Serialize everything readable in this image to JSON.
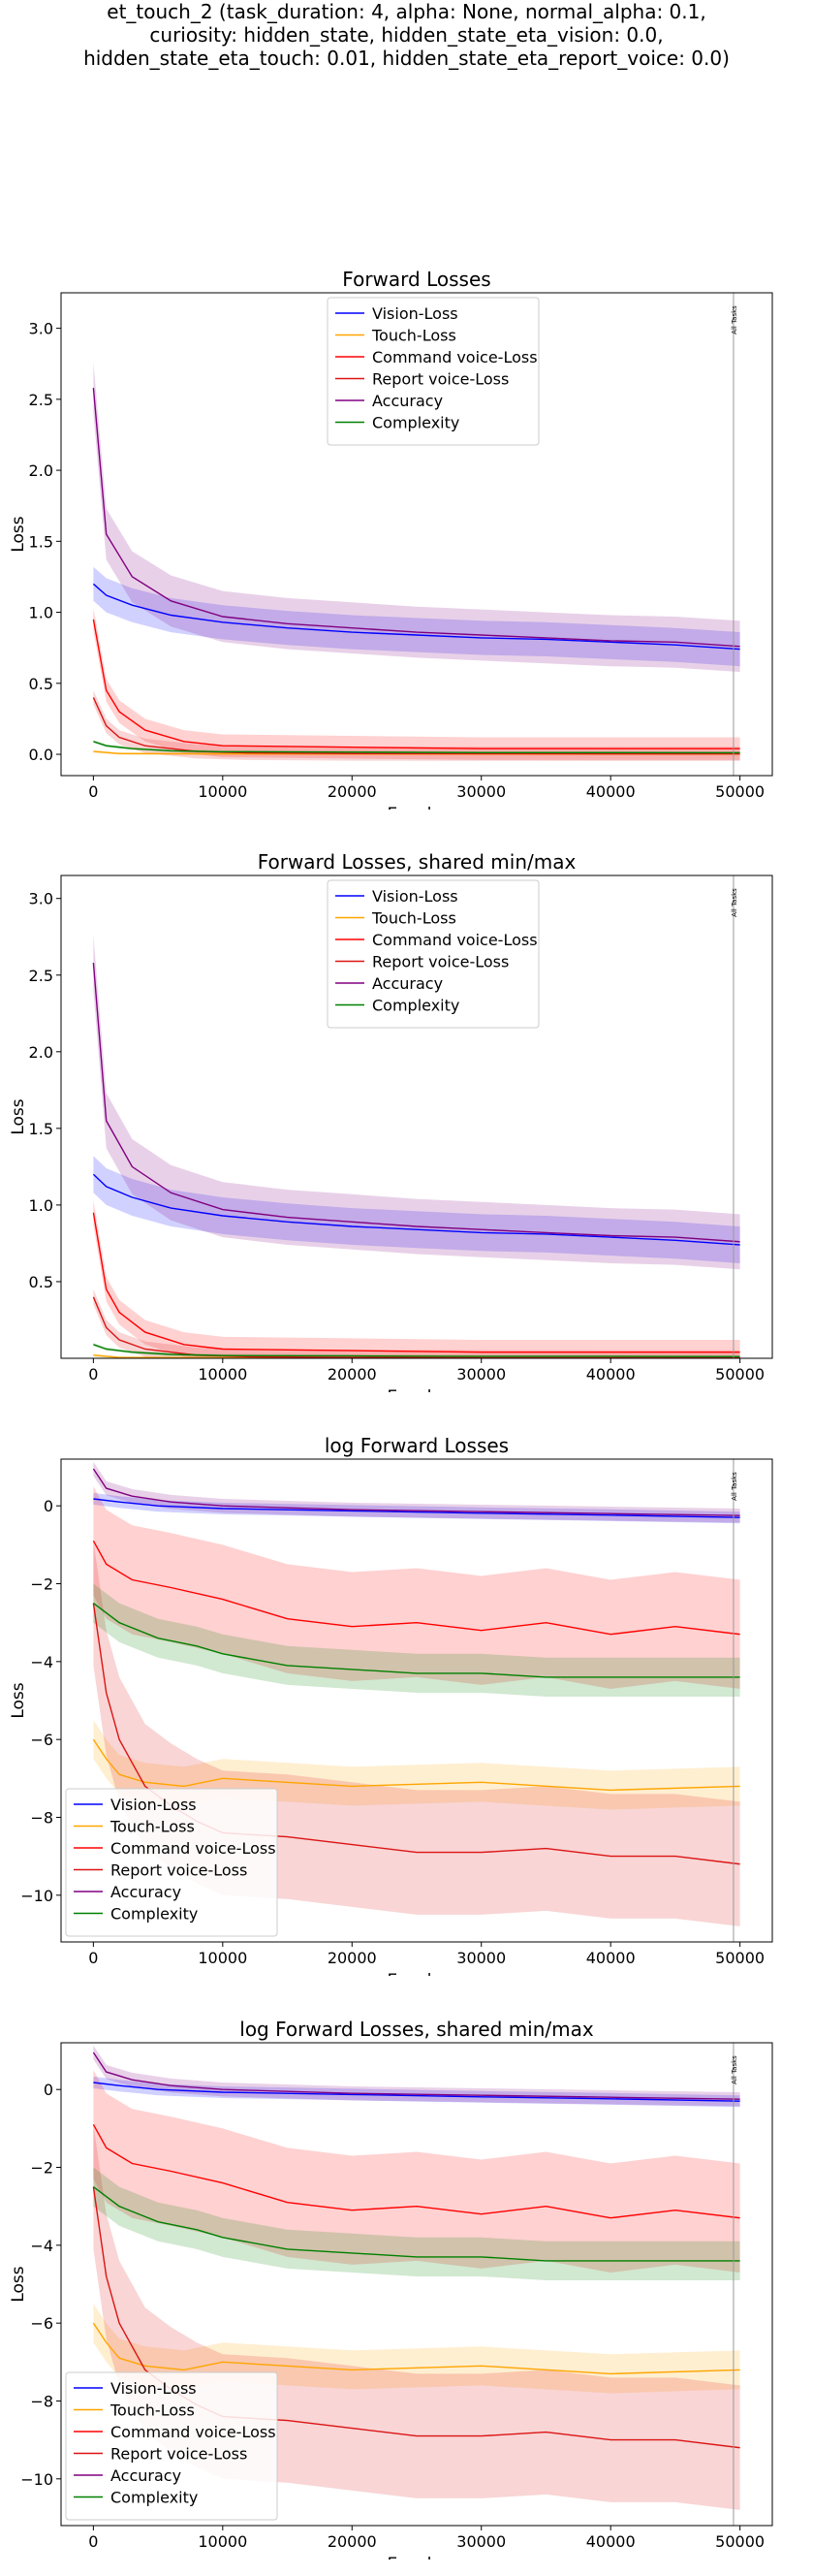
{
  "suptitle": [
    "et_touch_2 (task_duration: 4, alpha: None, normal_alpha: 0.1,",
    "curiosity: hidden_state, hidden_state_eta_vision: 0.0,",
    "hidden_state_eta_touch: 0.01, hidden_state_eta_report_voice: 0.0)"
  ],
  "colors": {
    "vision": "#0000ff",
    "touch": "#ffa500",
    "command": "#ff0000",
    "report": "#dc1414",
    "accuracy": "#800080",
    "complexity": "#008000"
  },
  "chart_data": [
    {
      "type": "line",
      "title": "Forward Losses",
      "xlabel": "Epochs",
      "ylabel": "Loss",
      "xlim": [
        -2500,
        52500
      ],
      "ylim": [
        -0.15,
        3.25
      ],
      "xticks": [
        0,
        10000,
        20000,
        30000,
        40000,
        50000
      ],
      "yticks": [
        0.0,
        0.5,
        1.0,
        1.5,
        2.0,
        2.5,
        3.0
      ],
      "ytick_labels": [
        "0.0",
        "0.5",
        "1.0",
        "1.5",
        "2.0",
        "2.5",
        "3.0"
      ],
      "legend": "upper-center",
      "vline": {
        "x": 49500,
        "label": "All Tasks"
      },
      "series": [
        {
          "name": "Vision-Loss",
          "key": "vision",
          "x": [
            0,
            1000,
            3000,
            6000,
            10000,
            15000,
            20000,
            25000,
            30000,
            35000,
            40000,
            45000,
            50000
          ],
          "y": [
            1.2,
            1.12,
            1.05,
            0.98,
            0.93,
            0.89,
            0.86,
            0.84,
            0.82,
            0.81,
            0.79,
            0.77,
            0.74
          ],
          "band": 0.12
        },
        {
          "name": "Touch-Loss",
          "key": "touch",
          "x": [
            0,
            2000,
            10000,
            30000,
            50000
          ],
          "y": [
            0.02,
            0.005,
            0.003,
            0.002,
            0.002
          ],
          "band": 0.01
        },
        {
          "name": "Command voice-Loss",
          "key": "command",
          "x": [
            0,
            1000,
            2000,
            4000,
            7000,
            10000,
            20000,
            30000,
            40000,
            50000
          ],
          "y": [
            0.95,
            0.45,
            0.3,
            0.17,
            0.09,
            0.06,
            0.05,
            0.04,
            0.04,
            0.04
          ],
          "band": 0.08
        },
        {
          "name": "Report voice-Loss",
          "key": "report",
          "x": [
            0,
            1000,
            2000,
            4000,
            8000,
            12000,
            20000,
            30000,
            40000,
            50000
          ],
          "y": [
            0.4,
            0.2,
            0.12,
            0.06,
            0.02,
            0.01,
            0.005,
            0.004,
            0.003,
            0.003
          ],
          "band": 0.05
        },
        {
          "name": "Accuracy",
          "key": "accuracy",
          "x": [
            0,
            1000,
            3000,
            6000,
            10000,
            15000,
            20000,
            25000,
            30000,
            35000,
            40000,
            45000,
            50000
          ],
          "y": [
            2.58,
            1.55,
            1.25,
            1.08,
            0.97,
            0.92,
            0.89,
            0.86,
            0.84,
            0.82,
            0.8,
            0.79,
            0.76
          ],
          "band": 0.18
        },
        {
          "name": "Complexity",
          "key": "complexity",
          "x": [
            0,
            1000,
            3000,
            6000,
            10000,
            20000,
            30000,
            40000,
            50000
          ],
          "y": [
            0.09,
            0.06,
            0.04,
            0.025,
            0.018,
            0.015,
            0.012,
            0.012,
            0.011
          ],
          "band": 0.01
        }
      ]
    },
    {
      "type": "line",
      "title": "Forward Losses, shared min/max",
      "xlabel": "Epochs",
      "ylabel": "Loss",
      "xlim": [
        -2500,
        52500
      ],
      "ylim": [
        0.0,
        3.15
      ],
      "xticks": [
        0,
        10000,
        20000,
        30000,
        40000,
        50000
      ],
      "yticks": [
        0.5,
        1.0,
        1.5,
        2.0,
        2.5,
        3.0
      ],
      "ytick_labels": [
        "0.5",
        "1.0",
        "1.5",
        "2.0",
        "2.5",
        "3.0"
      ],
      "legend": "upper-center",
      "vline": {
        "x": 49500,
        "label": "All Tasks"
      },
      "series": [
        {
          "name": "Vision-Loss",
          "key": "vision",
          "x": [
            0,
            1000,
            3000,
            6000,
            10000,
            15000,
            20000,
            25000,
            30000,
            35000,
            40000,
            45000,
            50000
          ],
          "y": [
            1.2,
            1.12,
            1.05,
            0.98,
            0.93,
            0.89,
            0.86,
            0.84,
            0.82,
            0.81,
            0.79,
            0.77,
            0.74
          ],
          "band": 0.12
        },
        {
          "name": "Touch-Loss",
          "key": "touch",
          "x": [
            0,
            2000,
            10000,
            30000,
            50000
          ],
          "y": [
            0.02,
            0.005,
            0.003,
            0.002,
            0.002
          ],
          "band": 0.01
        },
        {
          "name": "Command voice-Loss",
          "key": "command",
          "x": [
            0,
            1000,
            2000,
            4000,
            7000,
            10000,
            20000,
            30000,
            40000,
            50000
          ],
          "y": [
            0.95,
            0.45,
            0.3,
            0.17,
            0.09,
            0.06,
            0.05,
            0.04,
            0.04,
            0.04
          ],
          "band": 0.08
        },
        {
          "name": "Report voice-Loss",
          "key": "report",
          "x": [
            0,
            1000,
            2000,
            4000,
            8000,
            12000,
            20000,
            30000,
            40000,
            50000
          ],
          "y": [
            0.4,
            0.2,
            0.12,
            0.06,
            0.02,
            0.01,
            0.005,
            0.004,
            0.003,
            0.003
          ],
          "band": 0.05
        },
        {
          "name": "Accuracy",
          "key": "accuracy",
          "x": [
            0,
            1000,
            3000,
            6000,
            10000,
            15000,
            20000,
            25000,
            30000,
            35000,
            40000,
            45000,
            50000
          ],
          "y": [
            2.58,
            1.55,
            1.25,
            1.08,
            0.97,
            0.92,
            0.89,
            0.86,
            0.84,
            0.82,
            0.8,
            0.79,
            0.76
          ],
          "band": 0.18
        },
        {
          "name": "Complexity",
          "key": "complexity",
          "x": [
            0,
            1000,
            3000,
            6000,
            10000,
            20000,
            30000,
            40000,
            50000
          ],
          "y": [
            0.09,
            0.06,
            0.04,
            0.025,
            0.018,
            0.015,
            0.012,
            0.012,
            0.011
          ],
          "band": 0.01
        }
      ]
    },
    {
      "type": "line",
      "title": "log Forward Losses",
      "xlabel": "Epochs",
      "ylabel": "Loss",
      "xlim": [
        -2500,
        52500
      ],
      "ylim": [
        -11.2,
        1.2
      ],
      "xticks": [
        0,
        10000,
        20000,
        30000,
        40000,
        50000
      ],
      "yticks": [
        0,
        -2,
        -4,
        -6,
        -8,
        -10
      ],
      "ytick_labels": [
        "0",
        "−2",
        "−4",
        "−6",
        "−8",
        "−10"
      ],
      "legend": "lower-left",
      "vline": {
        "x": 49500,
        "label": "All Tasks"
      },
      "series": [
        {
          "name": "Vision-Loss",
          "key": "vision",
          "x": [
            0,
            2000,
            5000,
            10000,
            20000,
            30000,
            40000,
            50000
          ],
          "y": [
            0.18,
            0.1,
            0.0,
            -0.07,
            -0.13,
            -0.19,
            -0.24,
            -0.3
          ],
          "band": 0.15
        },
        {
          "name": "Touch-Loss",
          "key": "touch",
          "x": [
            0,
            1000,
            2000,
            4000,
            7000,
            10000,
            20000,
            30000,
            40000,
            50000
          ],
          "y": [
            -6.0,
            -6.5,
            -6.9,
            -7.1,
            -7.2,
            -7.0,
            -7.2,
            -7.1,
            -7.3,
            -7.2
          ],
          "band": 0.5
        },
        {
          "name": "Command voice-Loss",
          "key": "command",
          "x": [
            0,
            1000,
            3000,
            6000,
            10000,
            15000,
            20000,
            25000,
            30000,
            35000,
            40000,
            45000,
            50000
          ],
          "y": [
            -0.9,
            -1.5,
            -1.9,
            -2.1,
            -2.4,
            -2.9,
            -3.1,
            -3.0,
            -3.2,
            -3.0,
            -3.3,
            -3.1,
            -3.3
          ],
          "band": 1.4
        },
        {
          "name": "Report voice-Loss",
          "key": "report",
          "x": [
            0,
            1000,
            2000,
            4000,
            6000,
            8000,
            10000,
            15000,
            20000,
            25000,
            30000,
            35000,
            40000,
            45000,
            50000
          ],
          "y": [
            -2.5,
            -4.8,
            -6.0,
            -7.2,
            -7.7,
            -8.1,
            -8.4,
            -8.5,
            -8.7,
            -8.9,
            -8.9,
            -8.8,
            -9.0,
            -9.0,
            -9.2
          ],
          "band": 1.6
        },
        {
          "name": "Accuracy",
          "key": "accuracy",
          "x": [
            0,
            1000,
            3000,
            6000,
            10000,
            20000,
            30000,
            40000,
            50000
          ],
          "y": [
            0.95,
            0.45,
            0.25,
            0.1,
            0.0,
            -0.1,
            -0.15,
            -0.2,
            -0.25
          ],
          "band": 0.18
        },
        {
          "name": "Complexity",
          "key": "complexity",
          "x": [
            0,
            2000,
            5000,
            8000,
            10000,
            15000,
            20000,
            25000,
            30000,
            35000,
            40000,
            45000,
            50000
          ],
          "y": [
            -2.5,
            -3.0,
            -3.4,
            -3.6,
            -3.8,
            -4.1,
            -4.2,
            -4.3,
            -4.3,
            -4.4,
            -4.4,
            -4.4,
            -4.4
          ],
          "band": 0.5
        }
      ]
    },
    {
      "type": "line",
      "title": "log Forward Losses, shared min/max",
      "xlabel": "Epochs",
      "ylabel": "Loss",
      "xlim": [
        -2500,
        52500
      ],
      "ylim": [
        -11.2,
        1.2
      ],
      "xticks": [
        0,
        10000,
        20000,
        30000,
        40000,
        50000
      ],
      "yticks": [
        0,
        -2,
        -4,
        -6,
        -8,
        -10
      ],
      "ytick_labels": [
        "0",
        "−2",
        "−4",
        "−6",
        "−8",
        "−10"
      ],
      "legend": "lower-left",
      "vline": {
        "x": 49500,
        "label": "All Tasks"
      },
      "series": [
        {
          "name": "Vision-Loss",
          "key": "vision",
          "x": [
            0,
            2000,
            5000,
            10000,
            20000,
            30000,
            40000,
            50000
          ],
          "y": [
            0.18,
            0.1,
            0.0,
            -0.07,
            -0.13,
            -0.19,
            -0.24,
            -0.3
          ],
          "band": 0.15
        },
        {
          "name": "Touch-Loss",
          "key": "touch",
          "x": [
            0,
            1000,
            2000,
            4000,
            7000,
            10000,
            20000,
            30000,
            40000,
            50000
          ],
          "y": [
            -6.0,
            -6.5,
            -6.9,
            -7.1,
            -7.2,
            -7.0,
            -7.2,
            -7.1,
            -7.3,
            -7.2
          ],
          "band": 0.5
        },
        {
          "name": "Command voice-Loss",
          "key": "command",
          "x": [
            0,
            1000,
            3000,
            6000,
            10000,
            15000,
            20000,
            25000,
            30000,
            35000,
            40000,
            45000,
            50000
          ],
          "y": [
            -0.9,
            -1.5,
            -1.9,
            -2.1,
            -2.4,
            -2.9,
            -3.1,
            -3.0,
            -3.2,
            -3.0,
            -3.3,
            -3.1,
            -3.3
          ],
          "band": 1.4
        },
        {
          "name": "Report voice-Loss",
          "key": "report",
          "x": [
            0,
            1000,
            2000,
            4000,
            6000,
            8000,
            10000,
            15000,
            20000,
            25000,
            30000,
            35000,
            40000,
            45000,
            50000
          ],
          "y": [
            -2.5,
            -4.8,
            -6.0,
            -7.2,
            -7.7,
            -8.1,
            -8.4,
            -8.5,
            -8.7,
            -8.9,
            -8.9,
            -8.8,
            -9.0,
            -9.0,
            -9.2
          ],
          "band": 1.6
        },
        {
          "name": "Accuracy",
          "key": "accuracy",
          "x": [
            0,
            1000,
            3000,
            6000,
            10000,
            20000,
            30000,
            40000,
            50000
          ],
          "y": [
            0.95,
            0.45,
            0.25,
            0.1,
            0.0,
            -0.1,
            -0.15,
            -0.2,
            -0.25
          ],
          "band": 0.18
        },
        {
          "name": "Complexity",
          "key": "complexity",
          "x": [
            0,
            2000,
            5000,
            8000,
            10000,
            15000,
            20000,
            25000,
            30000,
            35000,
            40000,
            45000,
            50000
          ],
          "y": [
            -2.5,
            -3.0,
            -3.4,
            -3.6,
            -3.8,
            -4.1,
            -4.2,
            -4.3,
            -4.3,
            -4.4,
            -4.4,
            -4.4,
            -4.4
          ],
          "band": 0.5
        }
      ]
    }
  ]
}
